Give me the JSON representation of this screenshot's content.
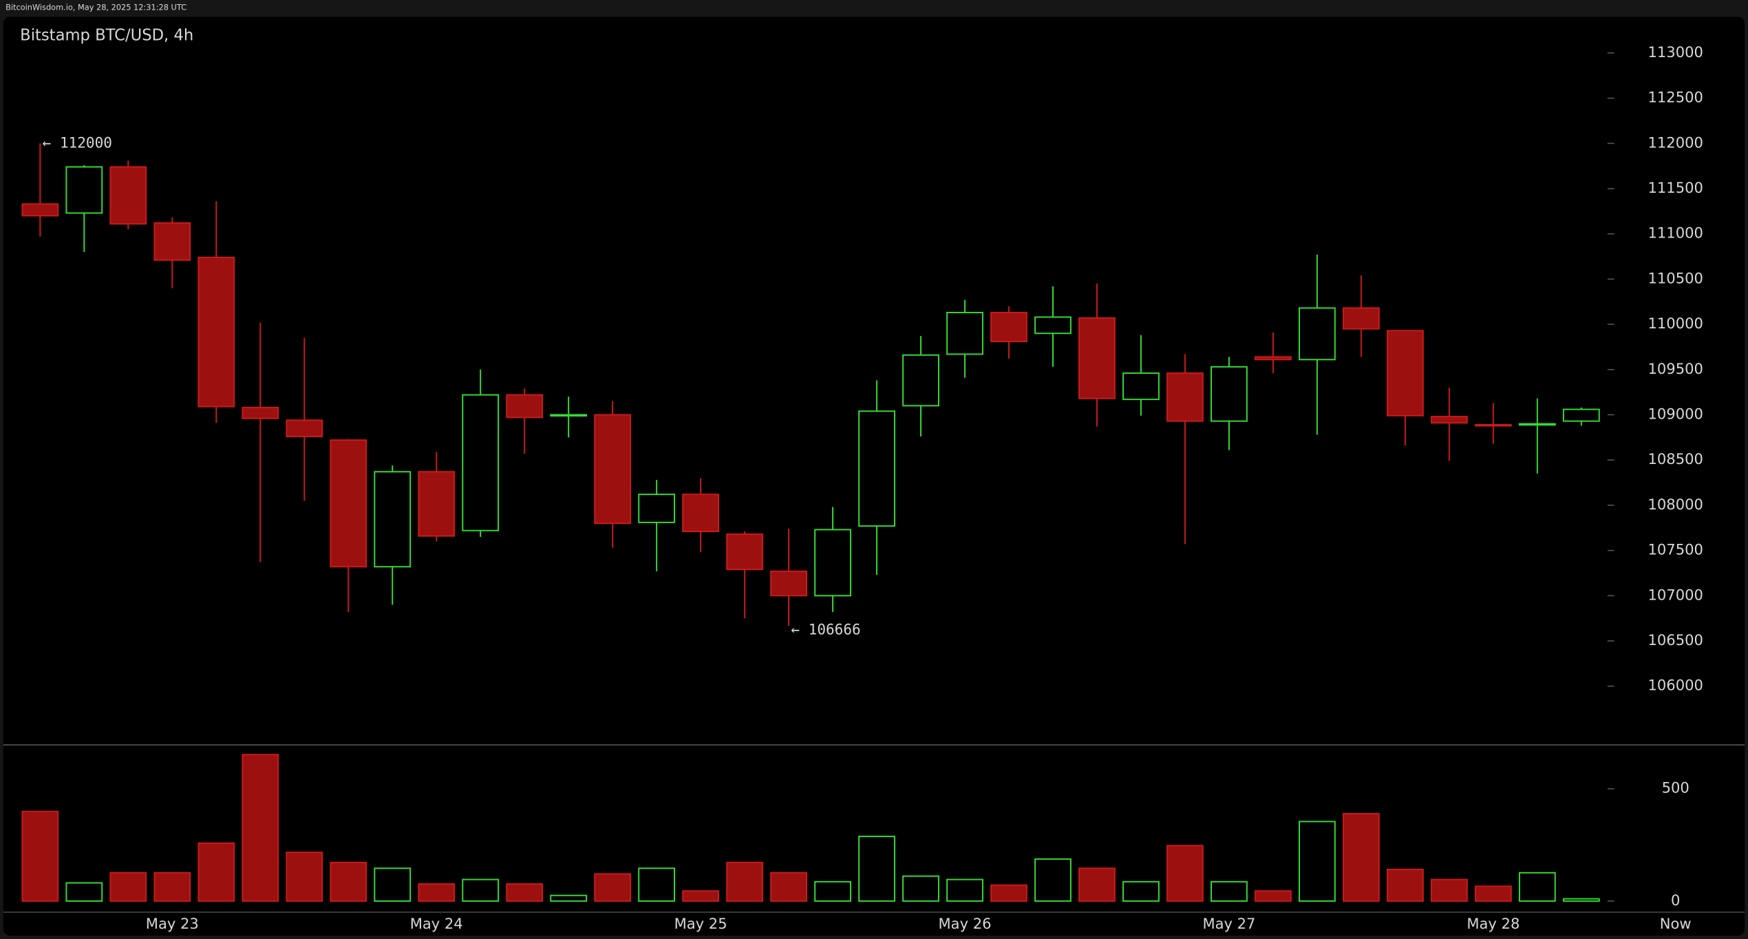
{
  "chart_data": {
    "type": "candlestick",
    "source": "BitcoinWisdom.io, May 28, 2025 12:31:28 UTC",
    "title": "Bitstamp BTC/USD, 4h",
    "now_label": "Now",
    "categories": [
      null,
      null,
      null,
      "May 23",
      null,
      null,
      null,
      null,
      null,
      "May 24",
      null,
      null,
      null,
      null,
      null,
      "May 25",
      null,
      null,
      null,
      null,
      null,
      "May 26",
      null,
      null,
      null,
      null,
      null,
      "May 27",
      null,
      null,
      null,
      null,
      null,
      "May 28",
      null,
      null
    ],
    "open": [
      111330,
      111230,
      111740,
      111120,
      110740,
      109080,
      108940,
      108720,
      107320,
      108370,
      107720,
      109220,
      108990,
      109000,
      107810,
      108120,
      107680,
      107270,
      107000,
      107770,
      109100,
      109670,
      110130,
      109900,
      110070,
      109170,
      109460,
      108930,
      109640,
      109610,
      110180,
      109930,
      108980,
      108890,
      108890,
      108930
    ],
    "high": [
      112000,
      111760,
      111810,
      111180,
      111360,
      110020,
      109850,
      108730,
      108440,
      108590,
      109500,
      109290,
      109200,
      109150,
      108280,
      108300,
      107710,
      107740,
      107980,
      109380,
      109870,
      110270,
      110200,
      110420,
      110450,
      109880,
      109670,
      109640,
      109910,
      110770,
      110540,
      109930,
      109300,
      109130,
      109180,
      109080
    ],
    "low": [
      110970,
      110800,
      111050,
      110400,
      108910,
      107370,
      108050,
      106820,
      106900,
      107600,
      107650,
      108570,
      108750,
      107530,
      107270,
      107480,
      106750,
      106666,
      106820,
      107230,
      108760,
      109410,
      109620,
      109530,
      108870,
      108990,
      107570,
      108610,
      109460,
      108780,
      109640,
      108660,
      108490,
      108680,
      108350,
      108880
    ],
    "close": [
      111200,
      111740,
      111110,
      110710,
      109090,
      108960,
      108760,
      107320,
      108370,
      107660,
      109220,
      108970,
      109000,
      107800,
      108120,
      107710,
      107290,
      107000,
      107730,
      109040,
      109660,
      110130,
      109810,
      110080,
      109180,
      109460,
      108930,
      109530,
      109610,
      110180,
      109950,
      108990,
      108910,
      108880,
      108900,
      109060
    ],
    "volume": [
      399,
      81,
      126,
      126,
      258,
      652,
      217,
      172,
      146,
      76,
      96,
      76,
      25,
      121,
      146,
      45,
      172,
      126,
      86,
      288,
      111,
      96,
      71,
      187,
      146,
      86,
      247,
      86,
      45,
      354,
      389,
      141,
      96,
      66,
      126,
      10
    ],
    "ylim": [
      105350,
      113400
    ],
    "yticks": [
      106000,
      106500,
      107000,
      107500,
      108000,
      108500,
      109000,
      109500,
      110000,
      110500,
      111000,
      111500,
      112000,
      112500,
      113000
    ],
    "volume_ylim": [
      0,
      700
    ],
    "volume_yticks": [
      0,
      500
    ],
    "annotations": [
      {
        "value": 112000,
        "label": "← 112000"
      },
      {
        "value": 106666,
        "label": "← 106666"
      }
    ],
    "up_color": "#33dd33",
    "down_color": "#9c1010",
    "down_stroke": "#cc1a1a"
  }
}
